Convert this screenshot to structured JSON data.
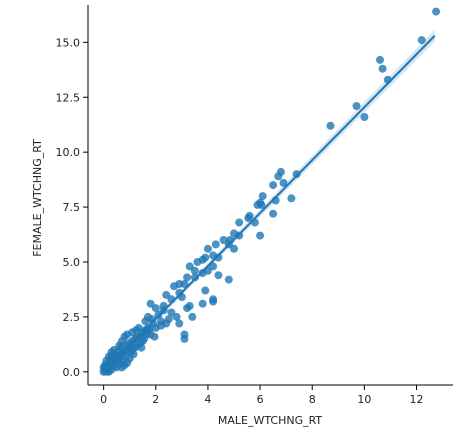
{
  "chart_data": {
    "type": "scatter",
    "title": "",
    "xlabel": "MALE_WTCHNG_RT",
    "ylabel": "FEMALE_WTCHNG_RT",
    "xlim": [
      -0.6,
      13.4
    ],
    "ylim": [
      -0.6,
      16.7
    ],
    "xticks": [
      0,
      2,
      4,
      6,
      8,
      10,
      12
    ],
    "xtick_labels": [
      "0",
      "2",
      "4",
      "6",
      "8",
      "10",
      "12"
    ],
    "yticks": [
      0.0,
      2.5,
      5.0,
      7.5,
      10.0,
      12.5,
      15.0
    ],
    "ytick_labels": [
      "0.0",
      "2.5",
      "5.0",
      "7.5",
      "10.0",
      "12.5",
      "15.0"
    ],
    "grid": false,
    "colors": {
      "points": "#1f77b4",
      "regression": "#1f77b4"
    },
    "regression": {
      "x_start": 0.0,
      "y_start": 0.0,
      "x_end": 12.7,
      "y_end": 15.3
    },
    "points": [
      [
        12.75,
        16.4
      ],
      [
        12.2,
        15.1
      ],
      [
        10.6,
        14.2
      ],
      [
        10.7,
        13.8
      ],
      [
        10.9,
        13.3
      ],
      [
        9.7,
        12.1
      ],
      [
        10.0,
        11.6
      ],
      [
        8.7,
        11.2
      ],
      [
        6.8,
        9.1
      ],
      [
        6.7,
        8.9
      ],
      [
        7.4,
        9.0
      ],
      [
        6.9,
        8.6
      ],
      [
        6.5,
        8.5
      ],
      [
        6.1,
        8.0
      ],
      [
        6.0,
        7.7
      ],
      [
        6.05,
        7.6
      ],
      [
        5.9,
        7.6
      ],
      [
        7.2,
        7.9
      ],
      [
        6.6,
        7.8
      ],
      [
        5.6,
        7.1
      ],
      [
        5.55,
        7.0
      ],
      [
        5.2,
        6.8
      ],
      [
        6.5,
        7.2
      ],
      [
        5.8,
        6.8
      ],
      [
        5.2,
        6.2
      ],
      [
        5.0,
        6.3
      ],
      [
        4.85,
        6.0
      ],
      [
        6.0,
        6.2
      ],
      [
        4.6,
        6.0
      ],
      [
        4.8,
        5.8
      ],
      [
        4.3,
        5.8
      ],
      [
        4.0,
        5.6
      ],
      [
        4.2,
        5.3
      ],
      [
        3.9,
        5.2
      ],
      [
        4.4,
        5.2
      ],
      [
        5.0,
        5.6
      ],
      [
        3.8,
        5.1
      ],
      [
        3.6,
        5.0
      ],
      [
        3.3,
        4.8
      ],
      [
        3.5,
        4.6
      ],
      [
        4.4,
        4.4
      ],
      [
        3.8,
        4.5
      ],
      [
        3.5,
        4.3
      ],
      [
        3.2,
        4.3
      ],
      [
        3.1,
        4.0
      ],
      [
        2.9,
        4.0
      ],
      [
        4.0,
        4.6
      ],
      [
        4.2,
        4.8
      ],
      [
        4.8,
        4.2
      ],
      [
        3.9,
        3.7
      ],
      [
        4.2,
        3.3
      ],
      [
        4.2,
        3.2
      ],
      [
        2.7,
        3.9
      ],
      [
        2.9,
        3.6
      ],
      [
        2.4,
        3.5
      ],
      [
        2.6,
        3.3
      ],
      [
        2.3,
        3.0
      ],
      [
        2.3,
        2.8
      ],
      [
        2.0,
        2.9
      ],
      [
        1.8,
        3.1
      ],
      [
        1.7,
        2.5
      ],
      [
        2.1,
        2.6
      ],
      [
        2.2,
        2.3
      ],
      [
        1.9,
        2.2
      ],
      [
        1.6,
        2.3
      ],
      [
        1.7,
        2.0
      ],
      [
        2.5,
        2.4
      ],
      [
        2.8,
        2.5
      ],
      [
        2.9,
        2.2
      ],
      [
        3.2,
        2.9
      ],
      [
        3.3,
        3.0
      ],
      [
        3.4,
        2.5
      ],
      [
        3.8,
        3.1
      ],
      [
        3.1,
        1.5
      ],
      [
        3.1,
        1.7
      ],
      [
        1.5,
        1.8
      ],
      [
        1.3,
        1.6
      ],
      [
        1.1,
        1.4
      ],
      [
        1.2,
        1.1
      ],
      [
        1.4,
        1.3
      ],
      [
        0.9,
        1.0
      ],
      [
        0.8,
        1.2
      ],
      [
        0.7,
        0.8
      ],
      [
        0.6,
        0.7
      ],
      [
        0.5,
        0.5
      ],
      [
        0.4,
        0.6
      ],
      [
        0.3,
        0.4
      ],
      [
        0.2,
        0.2
      ],
      [
        0.1,
        0.1
      ],
      [
        0.0,
        0.0
      ],
      [
        0.05,
        0.1
      ],
      [
        0.15,
        0.3
      ],
      [
        0.25,
        0.2
      ],
      [
        0.35,
        0.5
      ],
      [
        0.45,
        0.3
      ],
      [
        0.55,
        0.9
      ],
      [
        0.65,
        1.1
      ],
      [
        0.75,
        0.5
      ],
      [
        0.85,
        0.7
      ],
      [
        0.95,
        1.3
      ],
      [
        1.05,
        0.9
      ],
      [
        1.15,
        0.8
      ],
      [
        1.25,
        1.9
      ],
      [
        1.35,
        2.0
      ],
      [
        1.45,
        1.1
      ],
      [
        1.55,
        1.5
      ],
      [
        1.65,
        1.7
      ],
      [
        1.75,
        1.9
      ],
      [
        1.85,
        2.4
      ],
      [
        1.95,
        1.6
      ],
      [
        0.1,
        0.5
      ],
      [
        0.2,
        0.7
      ],
      [
        0.3,
        0.9
      ],
      [
        0.05,
        0.3
      ],
      [
        0.6,
        0.4
      ],
      [
        0.8,
        0.3
      ],
      [
        1.0,
        0.6
      ],
      [
        0.4,
        1.0
      ],
      [
        0.7,
        1.4
      ],
      [
        0.9,
        1.7
      ],
      [
        1.1,
        1.8
      ],
      [
        1.3,
        1.2
      ],
      [
        1.5,
        1.4
      ],
      [
        2.0,
        2.0
      ],
      [
        2.2,
        2.1
      ],
      [
        1.8,
        1.7
      ],
      [
        0.2,
        0.0
      ],
      [
        0.3,
        0.1
      ],
      [
        0.1,
        0.2
      ],
      [
        0.5,
        0.2
      ],
      [
        0.6,
        0.6
      ],
      [
        0.7,
        0.2
      ],
      [
        0.4,
        0.8
      ],
      [
        0.3,
        0.7
      ],
      [
        1.2,
        1.5
      ],
      [
        1.4,
        1.6
      ],
      [
        1.0,
        1.2
      ],
      [
        0.8,
        0.9
      ],
      [
        0.5,
        0.7
      ],
      [
        0.0,
        0.2
      ],
      [
        0.1,
        0.0
      ],
      [
        0.2,
        0.4
      ],
      [
        0.9,
        0.4
      ],
      [
        1.1,
        1.0
      ],
      [
        1.6,
        1.9
      ],
      [
        2.4,
        2.2
      ],
      [
        2.6,
        2.7
      ],
      [
        3.0,
        3.4
      ],
      [
        0.6,
        1.2
      ],
      [
        0.3,
        0.6
      ],
      [
        0.8,
        1.6
      ]
    ]
  }
}
